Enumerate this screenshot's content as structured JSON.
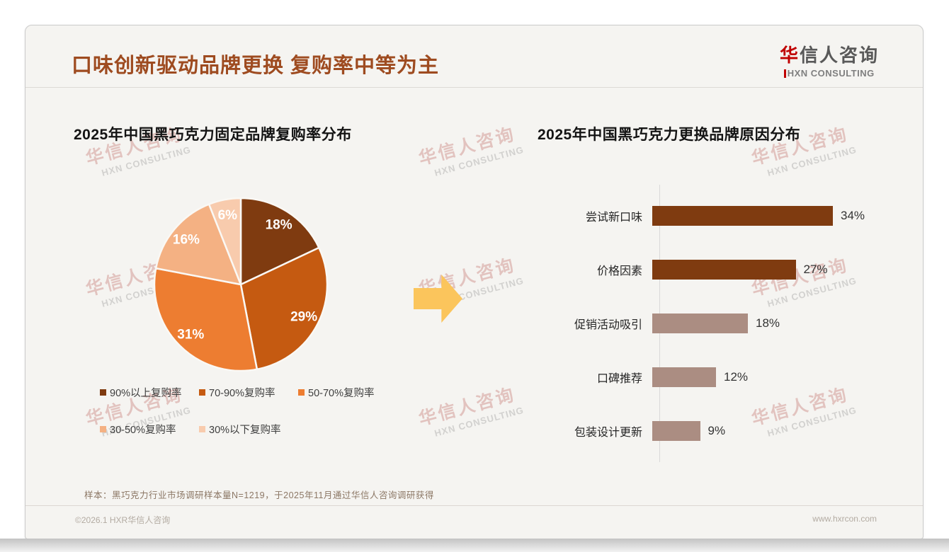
{
  "page": {
    "title": "口味创新驱动品牌更换 复购率中等为主",
    "logo": {
      "brand_accent": "华",
      "brand_rest": "信人咨询",
      "subtitle": "HXN CONSULTING"
    },
    "watermark": {
      "line1": "华信人咨询",
      "line2": "HXN CONSULTING"
    },
    "footnote": "样本：黑巧克力行业市场调研样本量N=1219，于2025年11月通过华信人咨询调研获得",
    "footer": {
      "copyright": "©2026.1 HXR华信人咨询",
      "website": "www.hxrcon.com"
    }
  },
  "colors": {
    "title_accent": "#9E4B20",
    "brand_red": "#C00000",
    "arrow_yellow": "#FBC55C",
    "bar_dark_brown": "#7F3B10",
    "bar_mauve": "#AB8D82",
    "card_background": "#F5F4F1"
  },
  "chart_data": [
    {
      "type": "pie",
      "title": "2025年中国黑巧克力固定品牌复购率分布",
      "labels": [
        "90%以上复购率",
        "70-90%复购率",
        "50-70%复购率",
        "30-50%复购率",
        "30%以下复购率"
      ],
      "values": [
        18,
        29,
        31,
        16,
        6
      ],
      "value_labels": [
        "18%",
        "29%",
        "31%",
        "16%",
        "6%"
      ],
      "colors": [
        "#7F3B10",
        "#C55A11",
        "#ED7D31",
        "#F4B183",
        "#F8CBAD"
      ],
      "start_angle": "top",
      "direction": "clockwise",
      "legend_position": "bottom"
    },
    {
      "type": "bar",
      "orientation": "horizontal",
      "title": "2025年中国黑巧克力更换品牌原因分布",
      "categories": [
        "尝试新口味",
        "价格因素",
        "促销活动吸引",
        "口碑推荐",
        "包装设计更新"
      ],
      "values": [
        34,
        27,
        18,
        12,
        9
      ],
      "value_labels": [
        "34%",
        "27%",
        "18%",
        "12%",
        "9%"
      ],
      "bar_colors": [
        "#7F3B10",
        "#7F3B10",
        "#AB8D82",
        "#AB8D82",
        "#AB8D82"
      ],
      "xlim": [
        0,
        36
      ],
      "grid": false,
      "axis_color": "#D9D9D9"
    }
  ]
}
